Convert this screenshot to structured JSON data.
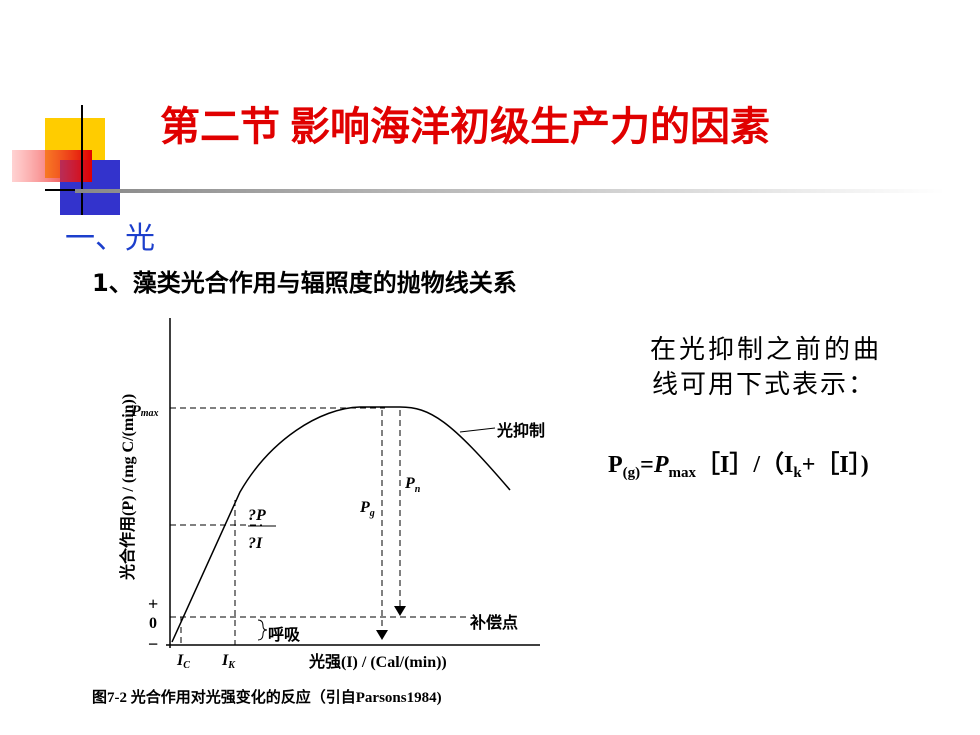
{
  "header": {
    "title": "第二节 影响海洋初级生产力的因素"
  },
  "section": {
    "heading": "一、光",
    "subheading": "1、藻类光合作用与辐照度的抛物线关系"
  },
  "figure": {
    "y_axis_label": "光合作用(P) / (mg C/(min))",
    "x_axis_label": "光强(I) / (Cal/(min))",
    "pmax": "P",
    "pmax_sub": "max",
    "inhibition": "光抑制",
    "pn": "P",
    "pn_sub": "n",
    "pg": "P",
    "pg_sub": "g",
    "slope_top": "?P",
    "slope_bottom": "?I",
    "plus": "+",
    "zero": "0",
    "minus": "−",
    "respiration": "呼吸",
    "compensation": "补偿点",
    "ic": "I",
    "ic_sub": "C",
    "ik": "I",
    "ik_sub": "K",
    "caption": "图7-2  光合作用对光强变化的反应（引自Parsons1984)"
  },
  "note": {
    "line1": "在光抑制之前的曲",
    "line2": "线可用下式表示：",
    "formula": {
      "p": "P",
      "p_sub": "(g)",
      "eq": "=",
      "pmax": "P",
      "pmax_sub": "max",
      "mid": "［I］/（I",
      "k_sub": "k",
      "tail": "+［I］)"
    }
  }
}
